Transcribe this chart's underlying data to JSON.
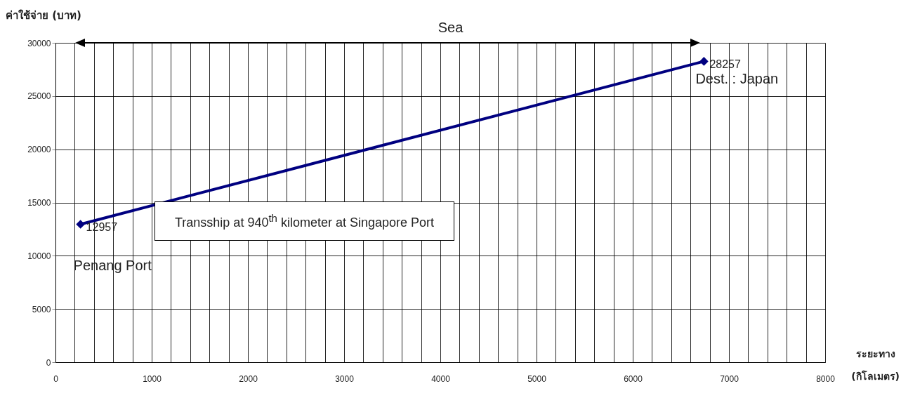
{
  "chart_data": {
    "type": "line",
    "ylabel": "ค่าใช้จ่าย (บาท)",
    "xlabel": "ระยะทาง (กิโลเมตร)",
    "x": [
      260,
      6740
    ],
    "series": [
      {
        "color": "#000080",
        "values": [
          12957,
          28257
        ]
      }
    ],
    "xlim": [
      0,
      8000
    ],
    "ylim": [
      0,
      30000
    ],
    "xticks": [
      0,
      {
        "value": 200,
        "label": null
      },
      {
        "value": 400,
        "label": null
      },
      {
        "value": 600,
        "label": null
      },
      {
        "value": 800,
        "label": null
      },
      1000,
      {
        "value": 1200,
        "label": null
      },
      {
        "value": 1400,
        "label": null
      },
      {
        "value": 1600,
        "label": null
      },
      {
        "value": 1800,
        "label": null
      },
      2000,
      {
        "value": 2200,
        "label": null
      },
      {
        "value": 2400,
        "label": null
      },
      {
        "value": 2600,
        "label": null
      },
      {
        "value": 2800,
        "label": null
      },
      3000,
      {
        "value": 3200,
        "label": null
      },
      {
        "value": 3400,
        "label": null
      },
      {
        "value": 3600,
        "label": null
      },
      {
        "value": 3800,
        "label": null
      },
      4000,
      {
        "value": 4200,
        "label": null
      },
      {
        "value": 4400,
        "label": null
      },
      {
        "value": 4600,
        "label": null
      },
      {
        "value": 4800,
        "label": null
      },
      5000,
      {
        "value": 5200,
        "label": null
      },
      {
        "value": 5400,
        "label": null
      },
      {
        "value": 5600,
        "label": null
      },
      {
        "value": 5800,
        "label": null
      },
      6000,
      {
        "value": 6200,
        "label": null
      },
      {
        "value": 6400,
        "label": null
      },
      {
        "value": 6600,
        "label": null
      },
      {
        "value": 6800,
        "label": null
      },
      7000,
      {
        "value": 7200,
        "label": null
      },
      {
        "value": 7400,
        "label": null
      },
      {
        "value": 7600,
        "label": null
      },
      {
        "value": 7800,
        "label": null
      },
      8000
    ],
    "yticks": [
      0,
      5000,
      10000,
      15000,
      20000,
      25000,
      30000
    ],
    "grid": true,
    "marker": "diamond",
    "line_style": "solid",
    "data_labels": true,
    "legend": false,
    "annotations": [
      "Sea",
      {
        "text": "Penang Port",
        "x": 260,
        "y": 12957
      },
      {
        "text": "Dest. : Japan",
        "x": 6740,
        "y": 28257
      },
      "Transship at 940$^{th}$ kilometer at Singapore Port"
    ]
  }
}
